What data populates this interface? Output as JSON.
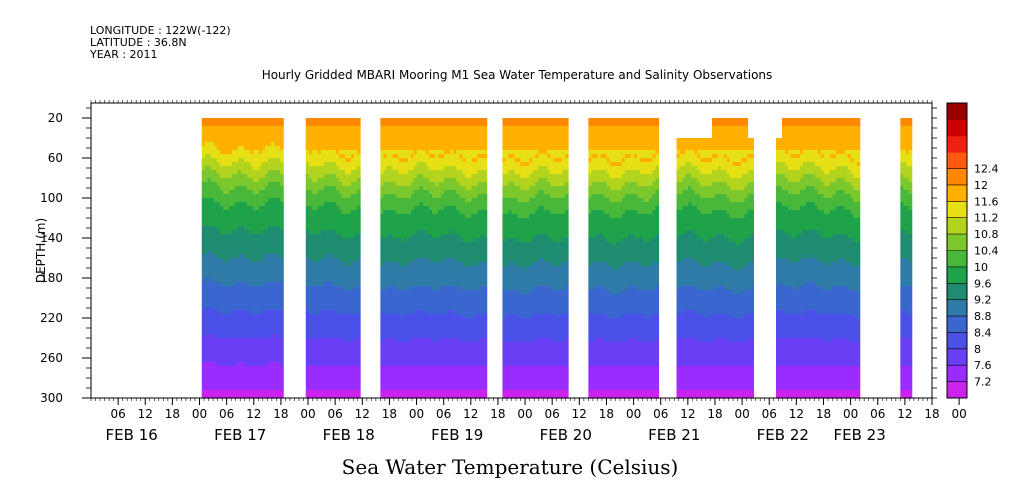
{
  "header": {
    "longitude": "LONGITUDE : 122W(-122)",
    "latitude": "LATITUDE : 36.8N",
    "year": "YEAR : 2011"
  },
  "chart_data": {
    "type": "heatmap",
    "title": "Hourly Gridded MBARI Mooring M1 Sea Water Temperature and Salinity Observations",
    "bottom_title": "Sea Water Temperature (Celsius)",
    "ylabel": "DEPTH (m)",
    "ylim": [
      300,
      5
    ],
    "y_ticks": [
      20,
      60,
      100,
      140,
      180,
      220,
      260,
      300
    ],
    "x_hours_range": [
      0,
      186
    ],
    "x_hour_labels": [
      "06",
      "12",
      "18",
      "00",
      "06",
      "12",
      "18",
      "00",
      "06",
      "12",
      "18",
      "00",
      "06",
      "12",
      "18",
      "00",
      "06",
      "12",
      "18",
      "00",
      "06",
      "12",
      "18",
      "00",
      "06",
      "12",
      "18",
      "00",
      "06",
      "12",
      "18",
      "00"
    ],
    "x_date_labels": [
      {
        "label": "FEB 16",
        "hour": 9
      },
      {
        "label": "FEB 17",
        "hour": 33
      },
      {
        "label": "FEB 18",
        "hour": 57
      },
      {
        "label": "FEB 19",
        "hour": 81
      },
      {
        "label": "FEB 20",
        "hour": 105
      },
      {
        "label": "FEB 21",
        "hour": 129
      },
      {
        "label": "FEB 22",
        "hour": 153
      },
      {
        "label": "FEB 23",
        "hour": 170
      }
    ],
    "colorbar": {
      "levels": [
        7.2,
        7.6,
        8,
        8.4,
        8.8,
        9.2,
        9.6,
        10,
        10.4,
        10.8,
        11.2,
        11.6,
        12,
        12.4
      ],
      "colors": [
        "#cc22ee",
        "#9a2cff",
        "#6a3ef5",
        "#4b50e8",
        "#3a66cf",
        "#2f7ba8",
        "#1f8c70",
        "#1ea34a",
        "#49b83a",
        "#7cc72c",
        "#b3d41e",
        "#e6e014",
        "#ffb000",
        "#ff8800",
        "#ff5a10",
        "#ee2010",
        "#cc0000",
        "#990000"
      ],
      "labels": [
        "7.2",
        "7.6",
        "8",
        "8.4",
        "8.8",
        "9.2",
        "9.6",
        "10",
        "10.4",
        "10.8",
        "11.2",
        "11.6",
        "12",
        "12.4"
      ]
    },
    "data_segments": [
      {
        "start_hour": 24.5,
        "end_hour": 42.5,
        "min_depth": 20,
        "mixed_depth": 72
      },
      {
        "start_hour": 47.5,
        "end_hour": 59.5,
        "min_depth": 20,
        "mixed_depth": 78
      },
      {
        "start_hour": 64,
        "end_hour": 87.5,
        "min_depth": 20,
        "mixed_depth": 82
      },
      {
        "start_hour": 91,
        "end_hour": 105.5,
        "min_depth": 20,
        "mixed_depth": 85
      },
      {
        "start_hour": 110,
        "end_hour": 125.5,
        "min_depth": 20,
        "mixed_depth": 82
      },
      {
        "start_hour": 129.5,
        "end_hour": 146.5,
        "min_depth": 40,
        "mixed_depth": 82,
        "cap_start": 137.5,
        "cap_end": 145
      },
      {
        "start_hour": 151.5,
        "end_hour": 170,
        "min_depth": 40,
        "mixed_depth": 80,
        "cap_start": 153,
        "cap_end": 170
      },
      {
        "start_hour": 179,
        "end_hour": 181.5,
        "min_depth": 20,
        "mixed_depth": 80
      }
    ]
  }
}
